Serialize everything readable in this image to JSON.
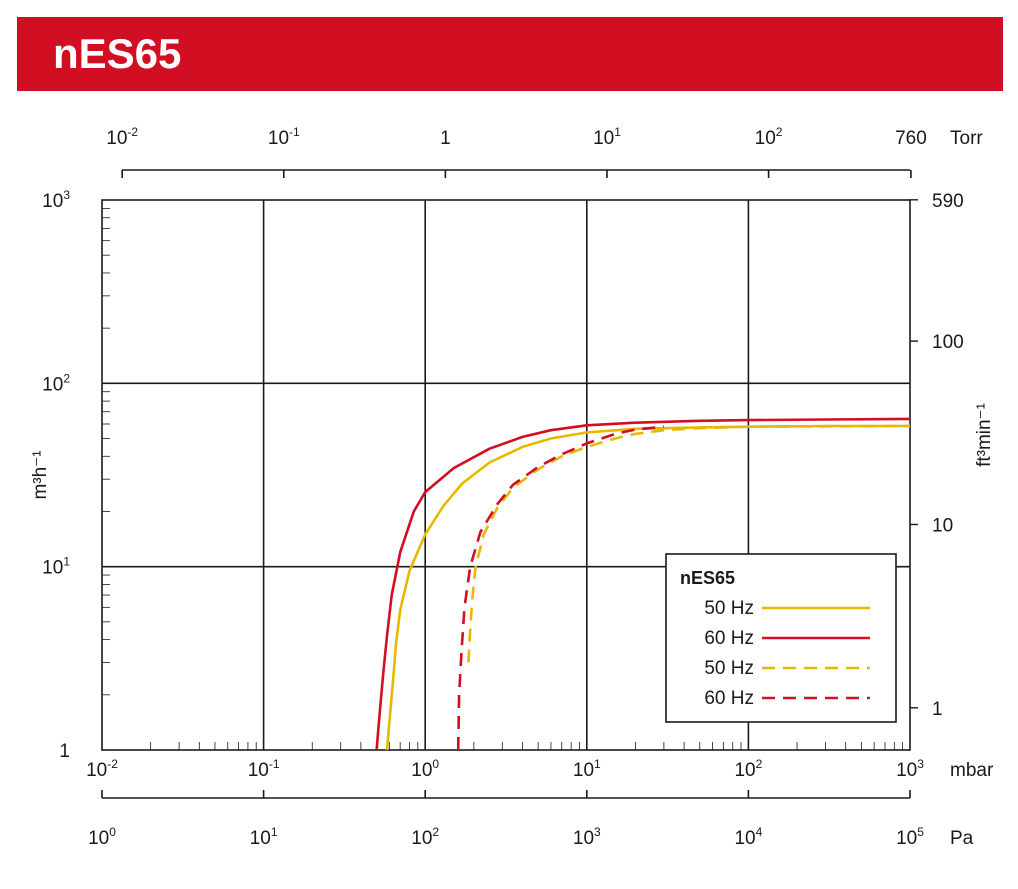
{
  "header": {
    "title": "nES65"
  },
  "colors": {
    "banner": "#d20e23",
    "series_50hz": "#e8b800",
    "series_60hz": "#d20e23",
    "grid": "#1a1a1a"
  },
  "chart_data": {
    "type": "line",
    "title": "nES65",
    "x_scale": "log",
    "y_scale": "log",
    "xlim": [
      0.01,
      1000
    ],
    "ylim": [
      1,
      1000
    ],
    "x_units": "mbar",
    "y_units": "m³h⁻¹",
    "axes": {
      "bottom": {
        "unit": "mbar",
        "ticks": [
          {
            "x": 0.01,
            "base": "10",
            "exp": "-2"
          },
          {
            "x": 0.1,
            "base": "10",
            "exp": "-1"
          },
          {
            "x": 1,
            "base": "10",
            "exp": "0"
          },
          {
            "x": 10,
            "base": "10",
            "exp": "1"
          },
          {
            "x": 100,
            "base": "10",
            "exp": "2"
          },
          {
            "x": 1000,
            "base": "10",
            "exp": "3"
          }
        ]
      },
      "top": {
        "unit": "Torr",
        "ticks": [
          {
            "x": 0.01,
            "base": "10",
            "exp": "-2"
          },
          {
            "x": 0.1,
            "base": "10",
            "exp": "-1"
          },
          {
            "x": 1,
            "base": "1",
            "exp": ""
          },
          {
            "x": 10,
            "base": "10",
            "exp": "1"
          },
          {
            "x": 100,
            "base": "10",
            "exp": "2"
          },
          {
            "x": 760,
            "base": "760",
            "exp": ""
          }
        ]
      },
      "pa": {
        "unit": "Pa",
        "ticks": [
          {
            "x": 1,
            "base": "10",
            "exp": "0"
          },
          {
            "x": 10,
            "base": "10",
            "exp": "1"
          },
          {
            "x": 100,
            "base": "10",
            "exp": "2"
          },
          {
            "x": 1000,
            "base": "10",
            "exp": "3"
          },
          {
            "x": 10000,
            "base": "10",
            "exp": "4"
          },
          {
            "x": 100000,
            "base": "10",
            "exp": "5"
          }
        ]
      },
      "left": {
        "label": "m³h⁻¹",
        "ticks": [
          {
            "y": 1,
            "base": "1",
            "exp": ""
          },
          {
            "y": 10,
            "base": "10",
            "exp": "1"
          },
          {
            "y": 100,
            "base": "10",
            "exp": "2"
          },
          {
            "y": 1000,
            "base": "10",
            "exp": "3"
          }
        ]
      },
      "right": {
        "label": "ft³min⁻¹",
        "ticks": [
          {
            "y": 590,
            "label": "590"
          },
          {
            "y": 100,
            "label": "100"
          },
          {
            "y": 10,
            "label": "10"
          },
          {
            "y": 1,
            "label": "1"
          }
        ]
      }
    },
    "legend": {
      "title": "nES65",
      "position": "bottom-right",
      "entries": [
        {
          "label": "50 Hz",
          "color": "#e8b800",
          "dash": "solid"
        },
        {
          "label": "60 Hz",
          "color": "#d20e23",
          "dash": "solid"
        },
        {
          "label": "50 Hz",
          "color": "#e8b800",
          "dash": "dashed"
        },
        {
          "label": "60 Hz",
          "color": "#d20e23",
          "dash": "dashed"
        }
      ]
    },
    "series": [
      {
        "name": "50 Hz",
        "color": "#e8b800",
        "dash": "solid",
        "x": [
          0.58,
          0.6,
          0.63,
          0.66,
          0.7,
          0.8,
          1.0,
          1.3,
          1.7,
          2.5,
          4,
          6,
          10,
          20,
          50,
          100,
          300,
          1000
        ],
        "y": [
          1,
          1.4,
          2.3,
          3.8,
          5.8,
          9.5,
          15,
          21.5,
          28.5,
          37,
          45,
          50,
          54,
          56.5,
          57.5,
          58,
          58.5,
          58.5
        ]
      },
      {
        "name": "60 Hz",
        "color": "#d20e23",
        "dash": "solid",
        "x": [
          0.5,
          0.52,
          0.55,
          0.58,
          0.62,
          0.7,
          0.85,
          1.0,
          1.5,
          2.5,
          4,
          6,
          10,
          20,
          50,
          100,
          300,
          1000
        ],
        "y": [
          1,
          1.5,
          2.6,
          4.2,
          7,
          12,
          20,
          25.5,
          34.5,
          44,
          51,
          55.5,
          59,
          61,
          62.5,
          63,
          63.5,
          64
        ]
      },
      {
        "name": "50 Hz",
        "color": "#e8b800",
        "dash": "dashed",
        "x": [
          1.85,
          1.9,
          1.95,
          2.05,
          2.3,
          2.8,
          3.5,
          5,
          7,
          10,
          15,
          20,
          30,
          50,
          100,
          1000
        ],
        "y": [
          3,
          4.5,
          6.5,
          10,
          15,
          21,
          27,
          34,
          40,
          45,
          50,
          53,
          55.5,
          57,
          58,
          58.5
        ]
      },
      {
        "name": "60 Hz",
        "color": "#d20e23",
        "dash": "dashed",
        "x": [
          1.6,
          1.62,
          1.68,
          1.75,
          1.9,
          2.2,
          2.8,
          3.5,
          5,
          7,
          10,
          15,
          20,
          30
        ],
        "y": [
          1,
          2,
          3.5,
          6,
          10,
          15.5,
          22,
          28,
          35,
          41,
          47,
          53,
          56,
          58
        ]
      }
    ]
  }
}
